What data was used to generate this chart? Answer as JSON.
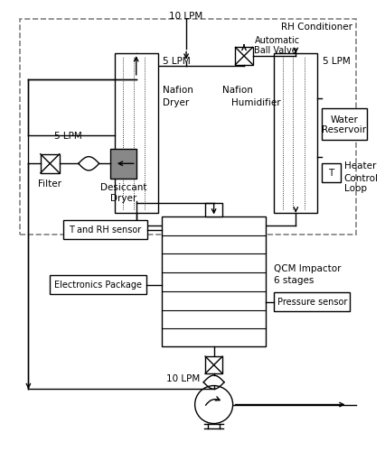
{
  "fig_width": 4.26,
  "fig_height": 5.0,
  "dpi": 100,
  "bg_color": "#ffffff",
  "lc": "#000000",
  "gray_fill": "#888888",
  "humidifier_fill": "#bbbbbb",
  "title_10lpm_top": "10 LPM",
  "title_rh": "RH Conditioner",
  "label_ball_valve_1": "Automatic",
  "label_ball_valve_2": "Ball Valve",
  "label_5lpm_dryer": "5 LPM",
  "label_nafion_dryer_1": "Nafion",
  "label_nafion_dryer_2": "Dryer",
  "label_5lpm_humid": "5 LPM",
  "label_nafion_humid_1": "Nafion",
  "label_nafion_humid_2": "Humidifier",
  "label_water_1": "Water",
  "label_water_2": "Reservoir",
  "label_heater": "Heater",
  "label_T": "T",
  "label_control_1": "Control",
  "label_control_2": "Loop",
  "label_filter": "Filter",
  "label_5lpm_inlet": "5 LPM",
  "label_desiccant_1": "Desiccant",
  "label_desiccant_2": "Dryer",
  "label_t_rh": "T and RH sensor",
  "label_electronics": "Electronics Package",
  "label_qcm_1": "QCM Impactor",
  "label_qcm_2": "6 stages",
  "label_pressure": "Pressure sensor",
  "label_10lpm_bottom": "10 LPM"
}
